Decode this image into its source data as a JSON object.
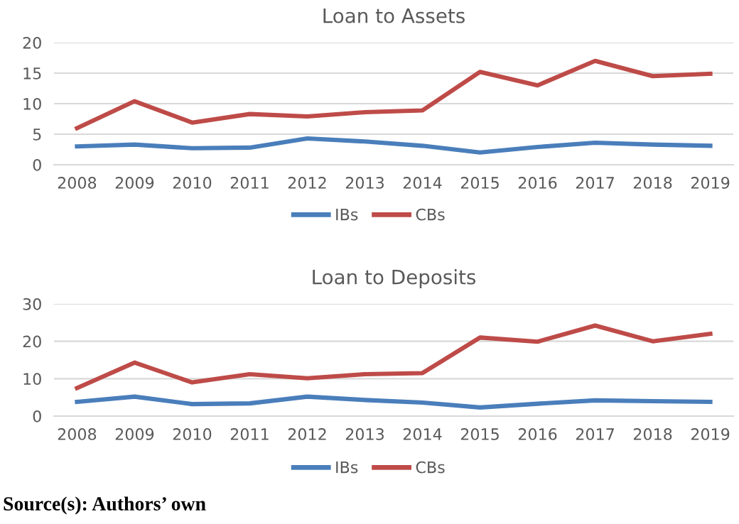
{
  "chart_data": [
    {
      "type": "line",
      "title": "Loan to Assets",
      "categories": [
        "2008",
        "2009",
        "2010",
        "2011",
        "2012",
        "2013",
        "2014",
        "2015",
        "2016",
        "2017",
        "2018",
        "2019"
      ],
      "series": [
        {
          "name": "IBs",
          "color": "#4a7ebb",
          "values": [
            3.0,
            3.3,
            2.7,
            2.8,
            4.3,
            3.8,
            3.1,
            2.0,
            2.9,
            3.6,
            3.3,
            3.1
          ]
        },
        {
          "name": "CBs",
          "color": "#be4b48",
          "values": [
            6.0,
            10.4,
            6.9,
            8.3,
            7.9,
            8.6,
            8.9,
            15.2,
            13.0,
            17.0,
            14.5,
            14.9
          ]
        }
      ],
      "ylim": [
        0,
        20
      ],
      "yticks": [
        0,
        5,
        10,
        15,
        20
      ],
      "grid": "y",
      "legend": "bottom",
      "marker": "none",
      "line_style": "solid"
    },
    {
      "type": "line",
      "title": "Loan to Deposits",
      "categories": [
        "2008",
        "2009",
        "2010",
        "2011",
        "2012",
        "2013",
        "2014",
        "2015",
        "2016",
        "2017",
        "2018",
        "2019"
      ],
      "series": [
        {
          "name": "IBs",
          "color": "#4a7ebb",
          "values": [
            3.8,
            5.2,
            3.2,
            3.4,
            5.2,
            4.3,
            3.6,
            2.3,
            3.3,
            4.2,
            4.0,
            3.8
          ]
        },
        {
          "name": "CBs",
          "color": "#be4b48",
          "values": [
            7.5,
            14.3,
            9.0,
            11.2,
            10.1,
            11.2,
            11.5,
            21.0,
            19.9,
            24.2,
            20.0,
            22.0
          ]
        }
      ],
      "ylim": [
        0,
        30
      ],
      "yticks": [
        0,
        10,
        20,
        30
      ],
      "grid": "y",
      "legend": "bottom",
      "marker": "none",
      "line_style": "solid",
      "annotations": [
        "Source(s): Authors’ own"
      ]
    }
  ]
}
